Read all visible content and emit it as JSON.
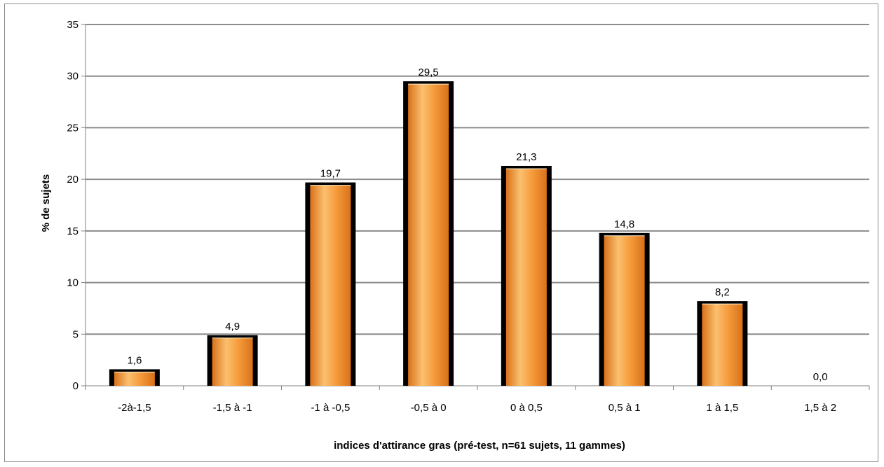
{
  "chart_data": {
    "type": "bar",
    "categories": [
      "-2à-1,5",
      "-1,5 à -1",
      "-1 à -0,5",
      "-0,5 à 0",
      "0 à 0,5",
      "0,5 à 1",
      "1 à 1,5",
      "1,5 à 2"
    ],
    "values": [
      1.6,
      4.9,
      19.7,
      29.5,
      21.3,
      14.8,
      8.2,
      0.0
    ],
    "data_labels": [
      "1,6",
      "4,9",
      "19,7",
      "29,5",
      "21,3",
      "14,8",
      "8,2",
      "0,0"
    ],
    "yticks": [
      "0",
      "5",
      "10",
      "15",
      "20",
      "25",
      "30",
      "35"
    ],
    "ylim": [
      0,
      35
    ],
    "xlabel": "indices d'attirance gras (pré-test, n=61 sujets, 11 gammes)",
    "ylabel": "% de sujets",
    "grid": true,
    "legend": "none",
    "colors": {
      "bar_fill": "#f59a3a",
      "bar_light": "#fbc06e",
      "bar_dark": "#d8711a",
      "bar_border": "#000000",
      "grid": "#8c8c8c",
      "axis": "#808080"
    }
  }
}
